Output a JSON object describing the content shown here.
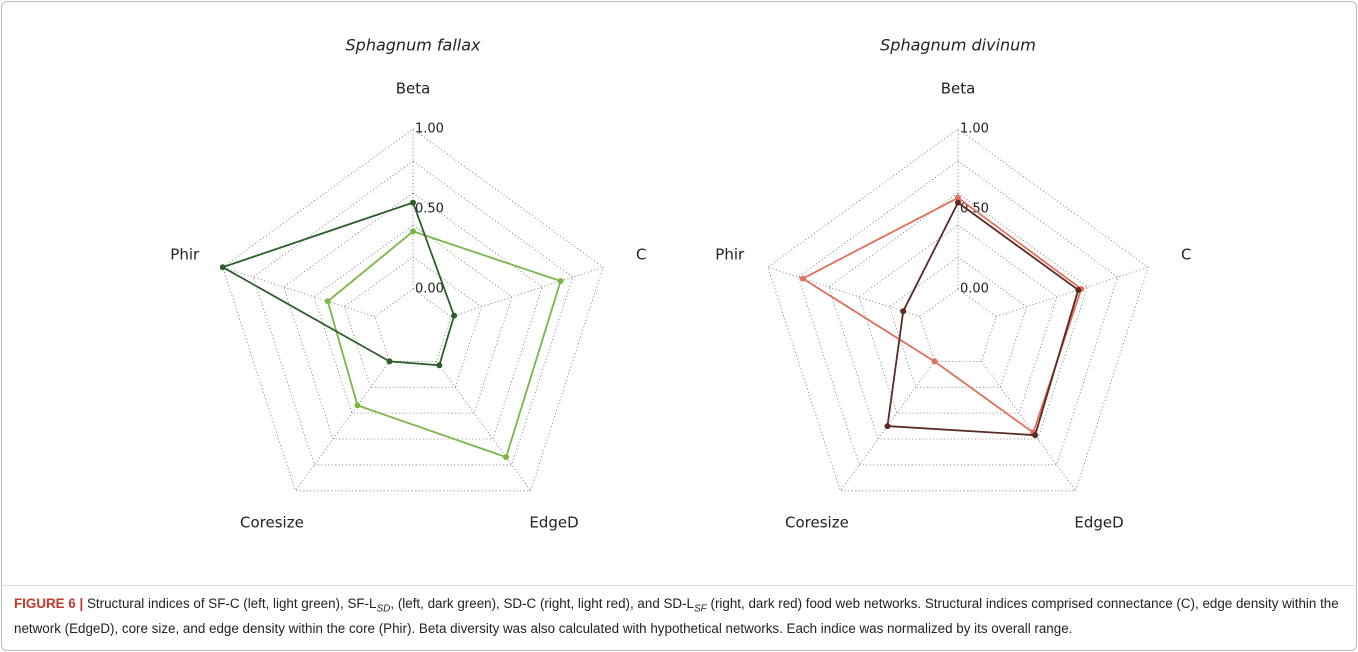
{
  "chart_data": [
    {
      "type": "radar",
      "title": "Sphagnum fallax",
      "categories": [
        "Beta",
        "C",
        "EdgeD",
        "Coresize",
        "Phir"
      ],
      "rlim": [
        0,
        1
      ],
      "rticks": [
        {
          "value": 0,
          "label": "0.00"
        },
        {
          "value": 0.5,
          "label": "0.50"
        },
        {
          "value": 1,
          "label": "1.00"
        }
      ],
      "series": [
        {
          "color": "#7ab648",
          "values": [
            0.36,
            0.72,
            0.74,
            0.34,
            0.31
          ]
        },
        {
          "color": "#2f5f2c",
          "values": [
            0.54,
            0.02,
            0.03,
            0.0,
            1.0
          ]
        }
      ]
    },
    {
      "type": "radar",
      "title": "Sphagnum divinum",
      "categories": [
        "Beta",
        "C",
        "EdgeD",
        "Coresize",
        "Phir"
      ],
      "rlim": [
        0,
        1
      ],
      "rticks": [
        {
          "value": 0,
          "label": "0.00"
        },
        {
          "value": 0.5,
          "label": "0.50"
        },
        {
          "value": 1,
          "label": "1.00"
        }
      ],
      "series": [
        {
          "color": "#e0705a",
          "values": [
            0.57,
            0.56,
            0.55,
            0.0,
            0.77
          ]
        },
        {
          "color": "#5b2a22",
          "values": [
            0.54,
            0.54,
            0.57,
            0.5,
            0.11
          ]
        }
      ]
    }
  ],
  "caption": {
    "label": "FIGURE 6 |",
    "parts": [
      "Structural indices of SF-C (left, light green), SF-L",
      "SD",
      ", (left, dark green), SD-C (right, light red), and SD-L",
      "SF",
      " (right, dark red) food web networks. Structural indices comprised connectance (C), edge density within the network (EdgeD), core size, and edge density within the core (Phir). Beta diversity was also calculated with hypothetical networks. Each indice was normalized by its overall range."
    ]
  }
}
